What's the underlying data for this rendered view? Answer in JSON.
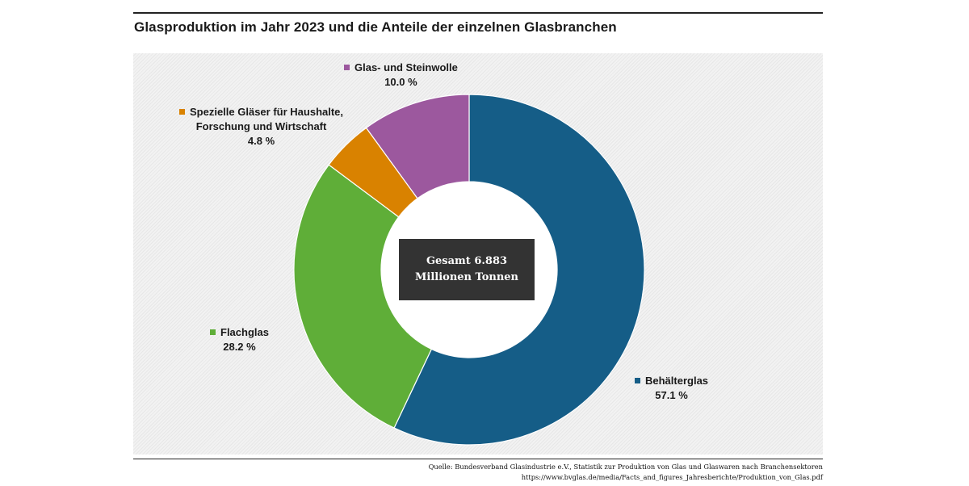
{
  "title": "Glasproduktion im Jahr 2023 und die Anteile der einzelnen Glasbranchen",
  "center_label": {
    "line1": "Gesamt 6.883",
    "line2": "Millionen Tonnen"
  },
  "source": {
    "line1": "Quelle: Bundesverband Glasindustrie e.V., Statistik zur Produktion von Glas und Glaswaren nach Branchensektoren",
    "line2": "https://www.bvglas.de/media/Facts_and_figures_Jahresberichte/Produktion_von_Glas.pdf"
  },
  "chart_data": {
    "type": "pie",
    "variant": "donut",
    "title": "Glasproduktion im Jahr 2023 und die Anteile der einzelnen Glasbranchen",
    "total": "6.883 Millionen Tonnen",
    "slices": [
      {
        "name": "Behälterglas",
        "value": 57.1,
        "label": "57.1 %",
        "color": "#155d87"
      },
      {
        "name": "Flachglas",
        "value": 28.2,
        "label": "28.2 %",
        "color": "#5fae38"
      },
      {
        "name": "Spezielle Gläser für Haushalte, Forschung und Wirtschaft",
        "name_line1": "Spezielle Gläser für Haushalte,",
        "name_line2": "Forschung und Wirtschaft",
        "value": 4.8,
        "label": "4.8 %",
        "color": "#d98200"
      },
      {
        "name": "Glas- und Steinwolle",
        "value": 10.0,
        "label": "10.0 %",
        "color": "#9c589e"
      }
    ]
  }
}
